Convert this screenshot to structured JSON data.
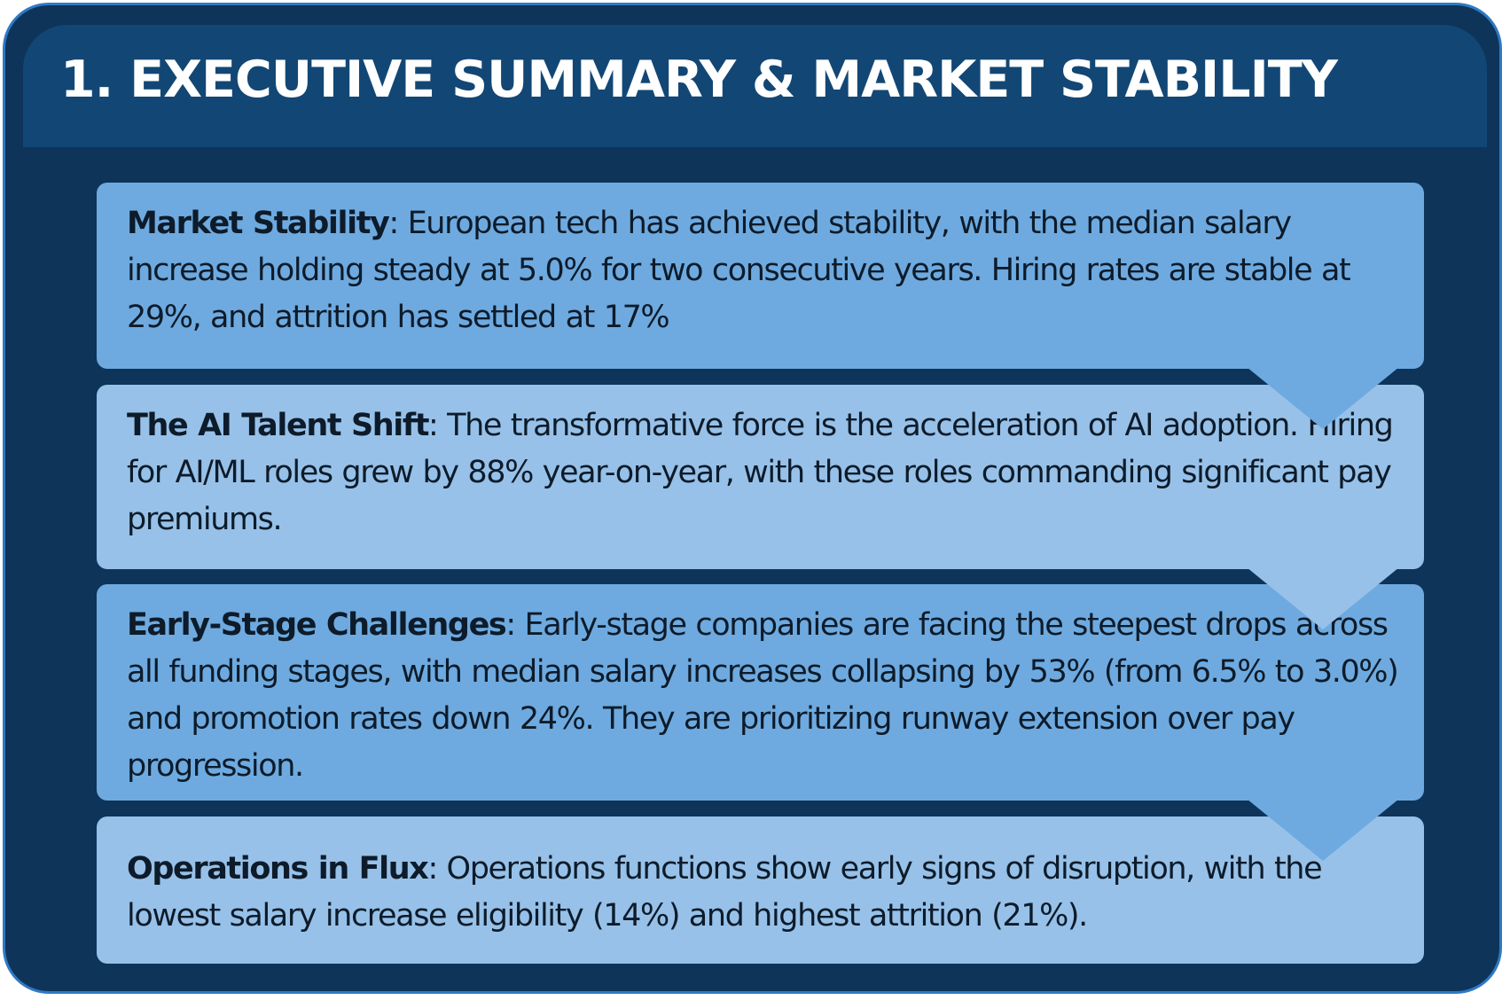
{
  "section": {
    "title": "1. EXECUTIVE SUMMARY & MARKET STABILITY"
  },
  "items": [
    {
      "heading": "Market Stability",
      "text": ": European tech has achieved stability, with the median salary increase holding steady at 5.0% for two consecutive years. Hiring rates are stable at 29%, and attrition has settled at 17%"
    },
    {
      "heading": "The AI Talent Shift",
      "text": ": The transformative force is the acceleration of AI adoption. Hiring for AI/ML roles grew by 88% year-on-year, with these roles commanding significant pay premiums."
    },
    {
      "heading": "Early-Stage Challenges",
      "text": ": Early-stage companies are facing the steepest drops across all funding stages, with median salary increases collapsing by 53% (from 6.5% to 3.0%) and promotion rates down 24%. They are prioritizing runway extension over pay progression."
    },
    {
      "heading": "Operations in Flux",
      "text": ": Operations functions show early signs of disruption, with the lowest salary increase eligibility (14%) and highest attrition (21%)."
    }
  ],
  "colors": {
    "frame_border": "#2f79c4",
    "background": "#0e3459",
    "header": "#124775",
    "card_dark": "#6eaadf",
    "card_light": "#97c1e8",
    "text": "#0d1b2a",
    "title": "#ffffff"
  }
}
